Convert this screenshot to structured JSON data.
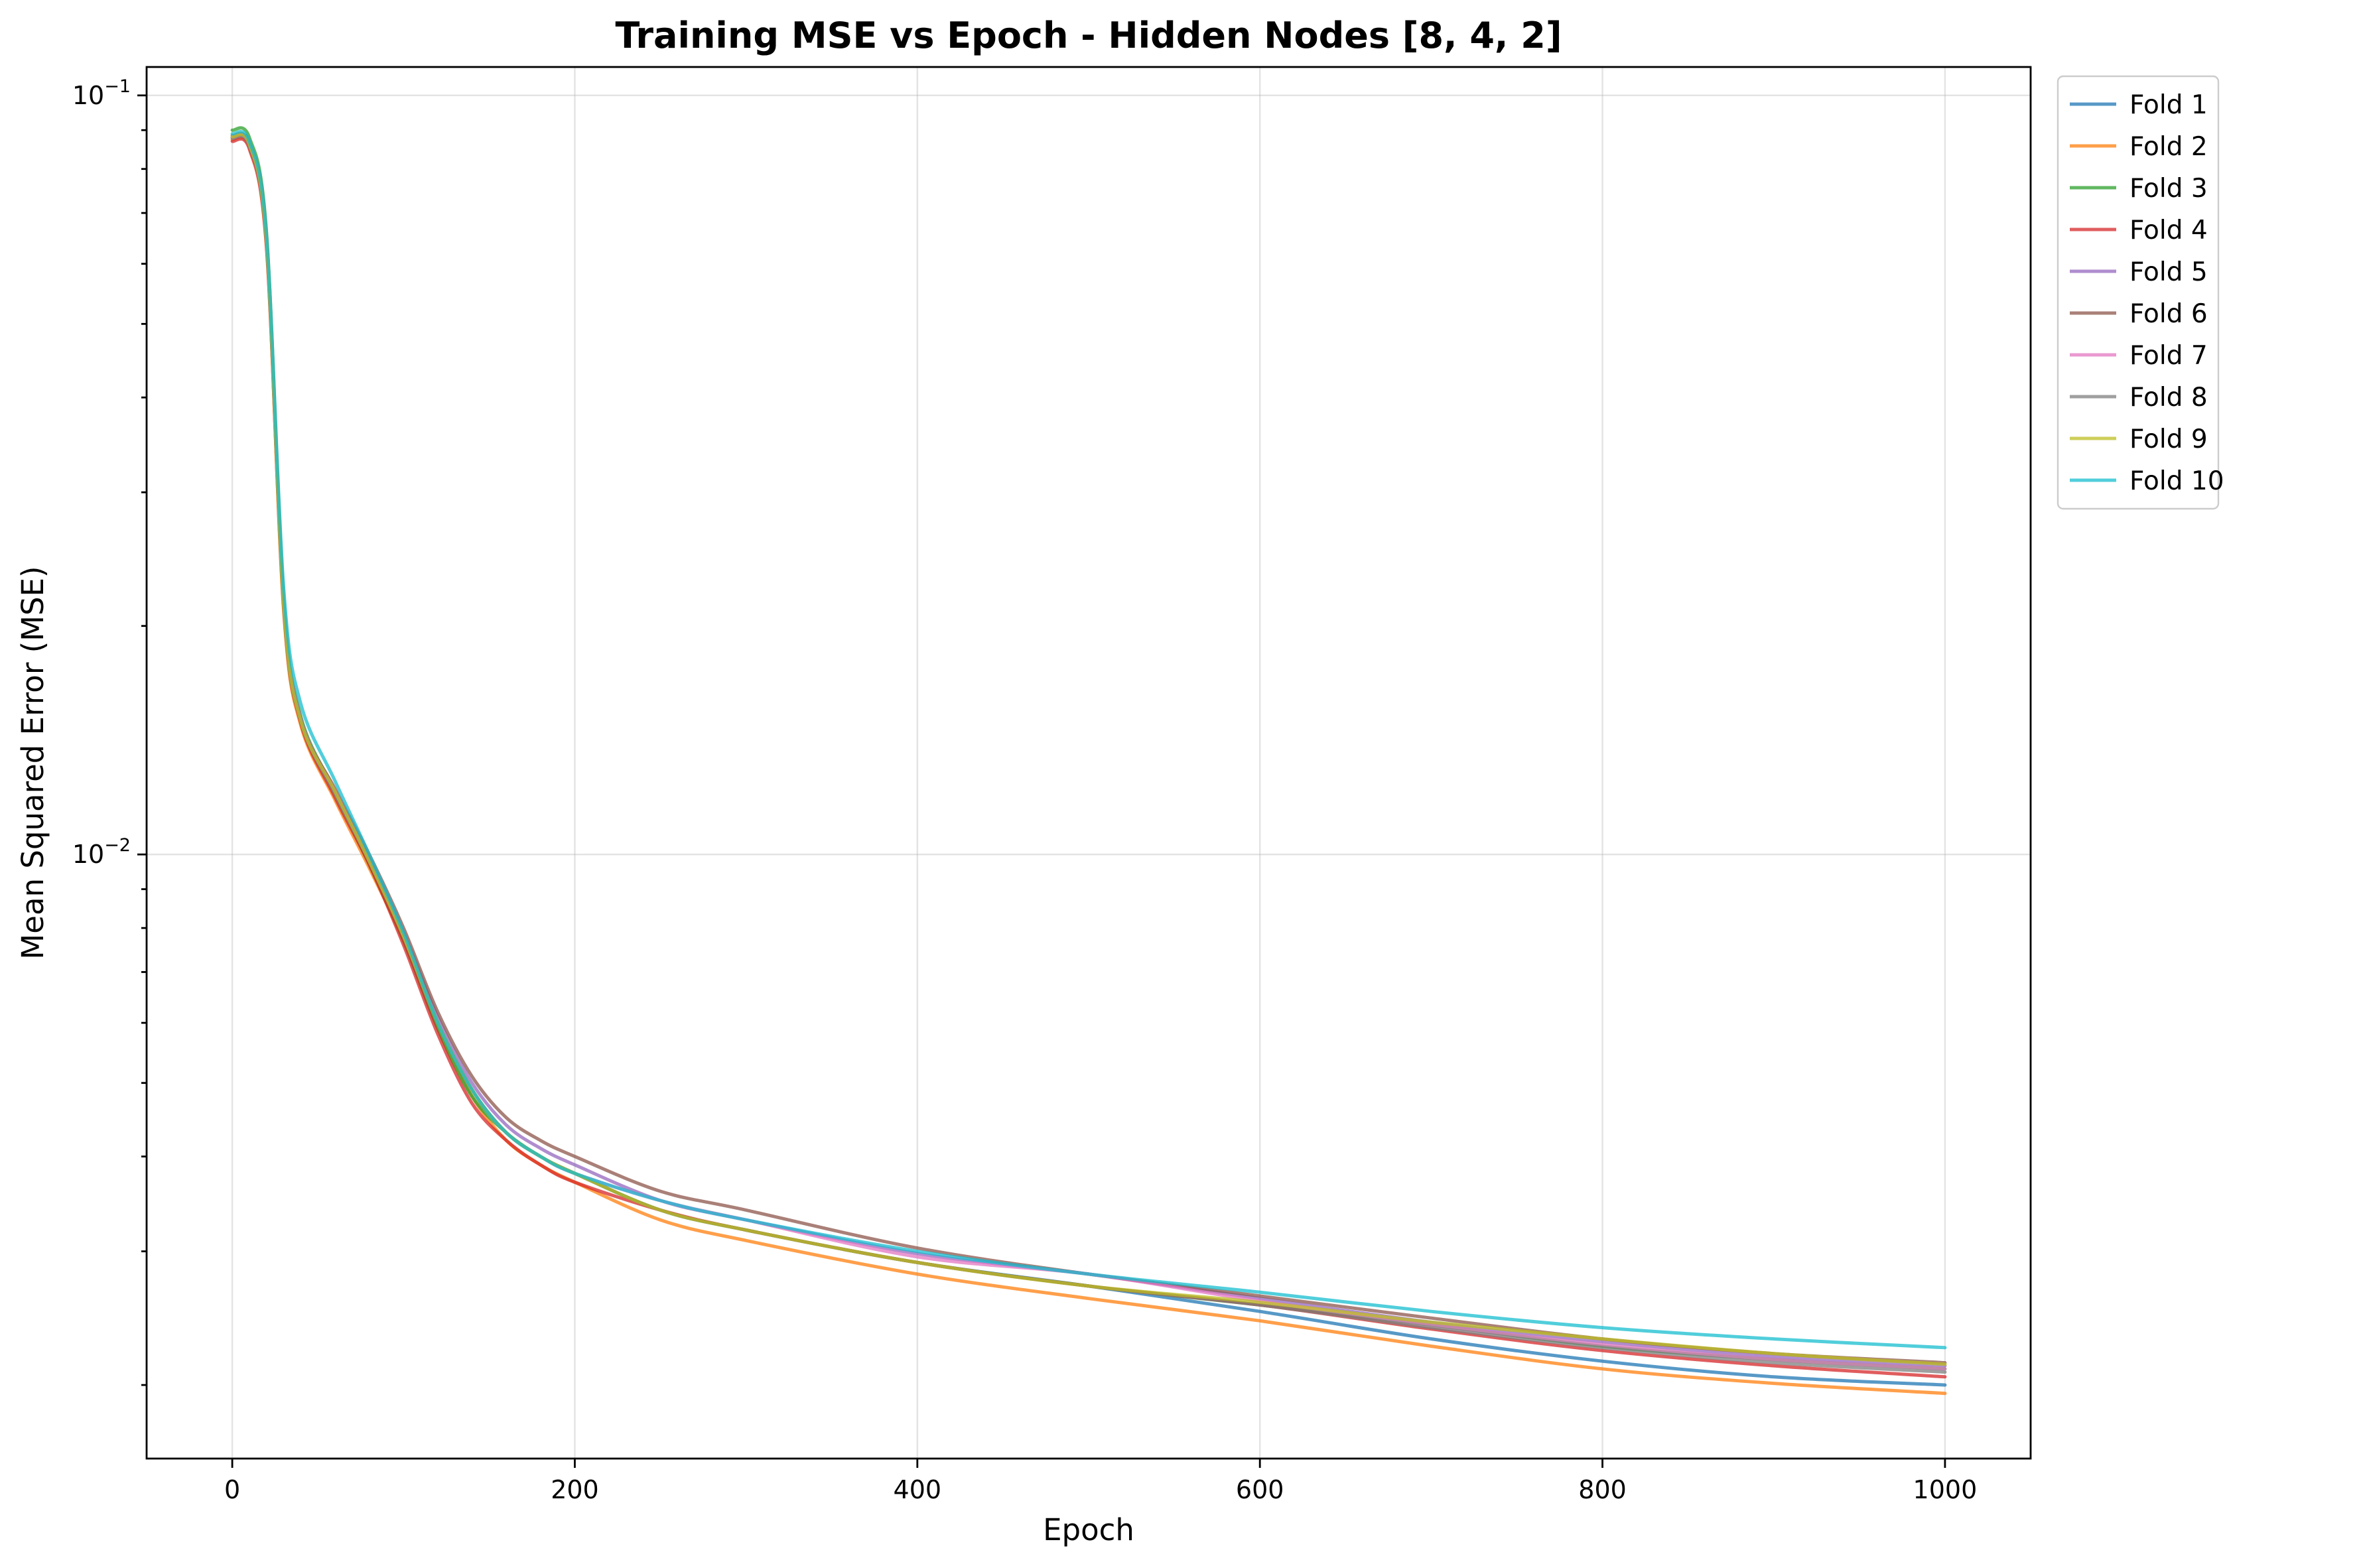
{
  "chart_data": {
    "type": "line",
    "title": "Training MSE vs Epoch - Hidden Nodes [8, 4, 2]",
    "xlabel": "Epoch",
    "ylabel": "Mean Squared Error (MSE)",
    "xlim": [
      -50,
      1050
    ],
    "ylim": [
      0.0016,
      0.109
    ],
    "yscale": "log",
    "grid": true,
    "legend_position": "outside-top-right",
    "x_ticks": [
      {
        "value": 0,
        "label": "0"
      },
      {
        "value": 200,
        "label": "200"
      },
      {
        "value": 400,
        "label": "400"
      },
      {
        "value": 600,
        "label": "600"
      },
      {
        "value": 800,
        "label": "800"
      },
      {
        "value": 1000,
        "label": "1000"
      }
    ],
    "y_ticks": [
      {
        "value": 0.1,
        "base": "10",
        "exp": "−1"
      },
      {
        "value": 0.01,
        "base": "10",
        "exp": "−2"
      }
    ],
    "y_minor_ticks": [
      0.002,
      0.003,
      0.004,
      0.005,
      0.006,
      0.007,
      0.008,
      0.009,
      0.02,
      0.03,
      0.04,
      0.05,
      0.06,
      0.07,
      0.08,
      0.09
    ],
    "x": [
      0,
      10,
      20,
      30,
      40,
      60,
      80,
      100,
      120,
      140,
      160,
      180,
      200,
      250,
      300,
      400,
      500,
      600,
      700,
      800,
      900,
      1000
    ],
    "series": [
      {
        "name": "Fold 1",
        "color": "#1f77b4",
        "values": [
          0.088,
          0.086,
          0.064,
          0.0215,
          0.015,
          0.012,
          0.0098,
          0.0078,
          0.006,
          0.0049,
          0.0043,
          0.004,
          0.0038,
          0.0034,
          0.0032,
          0.0029,
          0.0027,
          0.0025,
          0.0023,
          0.00215,
          0.00205,
          0.002
        ]
      },
      {
        "name": "Fold 2",
        "color": "#ff7f0e",
        "values": [
          0.0875,
          0.0855,
          0.0635,
          0.021,
          0.0148,
          0.0118,
          0.0096,
          0.0077,
          0.0059,
          0.0048,
          0.0042,
          0.0039,
          0.0037,
          0.0033,
          0.0031,
          0.0028,
          0.0026,
          0.00243,
          0.00225,
          0.0021,
          0.00201,
          0.00195
        ]
      },
      {
        "name": "Fold 3",
        "color": "#2ca02c",
        "values": [
          0.09,
          0.088,
          0.066,
          0.0218,
          0.0152,
          0.0121,
          0.0097,
          0.0077,
          0.0059,
          0.0048,
          0.0043,
          0.004,
          0.0038,
          0.0034,
          0.0032,
          0.0029,
          0.0027,
          0.00255,
          0.0024,
          0.00225,
          0.00216,
          0.0021
        ]
      },
      {
        "name": "Fold 4",
        "color": "#d62728",
        "values": [
          0.087,
          0.085,
          0.063,
          0.0212,
          0.0149,
          0.0119,
          0.0097,
          0.0076,
          0.0058,
          0.0047,
          0.0042,
          0.0039,
          0.0037,
          0.0034,
          0.0032,
          0.0029,
          0.0027,
          0.00255,
          0.00237,
          0.00222,
          0.00212,
          0.00205
        ]
      },
      {
        "name": "Fold 5",
        "color": "#9467bd",
        "values": [
          0.088,
          0.086,
          0.0645,
          0.0216,
          0.0151,
          0.0121,
          0.0099,
          0.0079,
          0.0061,
          0.005,
          0.0044,
          0.0041,
          0.0039,
          0.0035,
          0.0033,
          0.00298,
          0.0028,
          0.0026,
          0.00242,
          0.00228,
          0.00218,
          0.00212
        ]
      },
      {
        "name": "Fold 6",
        "color": "#8c564b",
        "values": [
          0.0885,
          0.0865,
          0.065,
          0.0214,
          0.015,
          0.0122,
          0.01,
          0.008,
          0.0062,
          0.0051,
          0.0045,
          0.0042,
          0.004,
          0.0036,
          0.0034,
          0.00303,
          0.0028,
          0.00262,
          0.00245,
          0.0023,
          0.0022,
          0.00214
        ]
      },
      {
        "name": "Fold 7",
        "color": "#e377c2",
        "values": [
          0.088,
          0.086,
          0.064,
          0.0214,
          0.015,
          0.0121,
          0.0098,
          0.0078,
          0.006,
          0.0049,
          0.0043,
          0.004,
          0.0038,
          0.0035,
          0.0033,
          0.00295,
          0.0028,
          0.00258,
          0.0024,
          0.00226,
          0.00216,
          0.0021
        ]
      },
      {
        "name": "Fold 8",
        "color": "#7f7f7f",
        "values": [
          0.0878,
          0.0858,
          0.064,
          0.0213,
          0.015,
          0.012,
          0.0098,
          0.0078,
          0.006,
          0.0049,
          0.0043,
          0.004,
          0.0038,
          0.0034,
          0.0032,
          0.0029,
          0.0027,
          0.00255,
          0.00238,
          0.00224,
          0.00214,
          0.00208
        ]
      },
      {
        "name": "Fold 9",
        "color": "#bcbd22",
        "values": [
          0.0882,
          0.0862,
          0.0642,
          0.0214,
          0.015,
          0.0121,
          0.0098,
          0.0078,
          0.006,
          0.0049,
          0.0043,
          0.004,
          0.0038,
          0.0034,
          0.0032,
          0.0029,
          0.0027,
          0.00257,
          0.00242,
          0.0023,
          0.0022,
          0.00213
        ]
      },
      {
        "name": "Fold 10",
        "color": "#17becf",
        "values": [
          0.089,
          0.087,
          0.0655,
          0.0225,
          0.0158,
          0.0125,
          0.01,
          0.0079,
          0.006,
          0.0049,
          0.0043,
          0.004,
          0.0038,
          0.0035,
          0.0033,
          0.003,
          0.0028,
          0.00265,
          0.0025,
          0.00238,
          0.0023,
          0.00224
        ]
      }
    ]
  }
}
